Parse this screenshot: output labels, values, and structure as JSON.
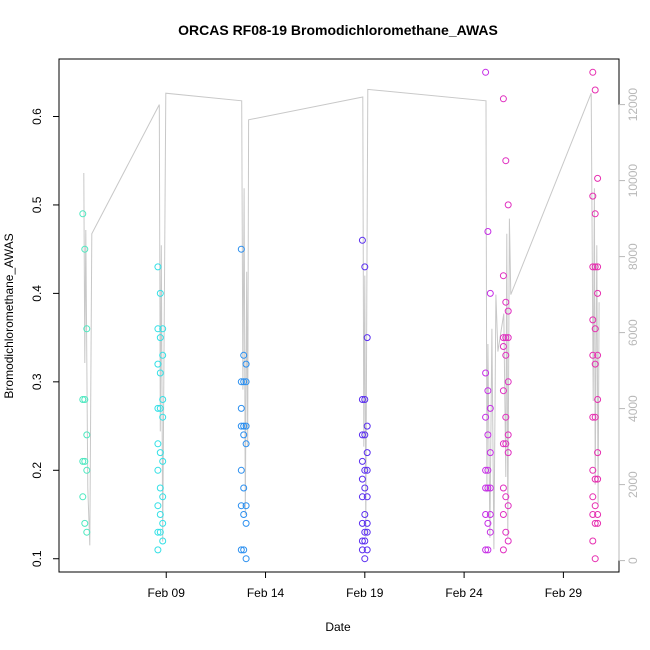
{
  "chart_data": {
    "type": "scatter",
    "title": "ORCAS RF08-19 Bromodichloromethane_AWAS",
    "xlabel": "Date",
    "ylabel": "Bromodichloromethane_AWAS",
    "x_ticks": [
      "Feb 09",
      "Feb 14",
      "Feb 19",
      "Feb 24",
      "Feb 29"
    ],
    "x_tick_days": [
      9,
      14,
      19,
      24,
      29
    ],
    "xlim": [
      3.6,
      31.8
    ],
    "ylim": [
      0.085,
      0.665
    ],
    "y_ticks": [
      0.1,
      0.2,
      0.3,
      0.4,
      0.5,
      0.6
    ],
    "y_right_ticks": [
      0,
      2000,
      4000,
      6000,
      8000,
      10000,
      12000
    ],
    "y_right_lim": [
      -300,
      13200
    ],
    "right_axis_color": "#b8b8b8",
    "line_color": "#c8c8c8",
    "grid": false,
    "series": [
      {
        "day": 4.9,
        "color": "#4de8c0",
        "jitter": 0.1,
        "values": [
          0.49,
          0.45,
          0.36,
          0.28,
          0.28,
          0.24,
          0.21,
          0.21,
          0.2,
          0.17,
          0.14,
          0.13
        ]
      },
      {
        "day": 8.7,
        "color": "#33e0e6",
        "jitter": 0.12,
        "values": [
          0.43,
          0.4,
          0.36,
          0.36,
          0.35,
          0.33,
          0.32,
          0.31,
          0.28,
          0.27,
          0.27,
          0.26,
          0.23,
          0.22,
          0.21,
          0.2,
          0.18,
          0.17,
          0.16,
          0.15,
          0.14,
          0.13,
          0.13,
          0.12,
          0.11
        ]
      },
      {
        "day": 12.9,
        "color": "#2a8ff0",
        "jitter": 0.12,
        "values": [
          0.45,
          0.33,
          0.32,
          0.3,
          0.3,
          0.3,
          0.27,
          0.25,
          0.25,
          0.25,
          0.24,
          0.23,
          0.2,
          0.18,
          0.16,
          0.16,
          0.15,
          0.14,
          0.11,
          0.11,
          0.1
        ]
      },
      {
        "day": 19.0,
        "color": "#5a2ef0",
        "jitter": 0.12,
        "values": [
          0.46,
          0.43,
          0.35,
          0.28,
          0.28,
          0.25,
          0.24,
          0.24,
          0.22,
          0.21,
          0.2,
          0.2,
          0.19,
          0.18,
          0.17,
          0.17,
          0.15,
          0.14,
          0.14,
          0.13,
          0.13,
          0.12,
          0.12,
          0.11,
          0.11,
          0.1
        ]
      },
      {
        "day": 25.2,
        "color": "#c62ee6",
        "jitter": 0.12,
        "values": [
          0.65,
          0.47,
          0.4,
          0.31,
          0.29,
          0.27,
          0.26,
          0.24,
          0.22,
          0.2,
          0.2,
          0.18,
          0.18,
          0.18,
          0.15,
          0.15,
          0.14,
          0.13,
          0.11,
          0.11
        ]
      },
      {
        "day": 26.1,
        "color": "#e02ec0",
        "jitter": 0.12,
        "values": [
          0.62,
          0.55,
          0.5,
          0.42,
          0.39,
          0.38,
          0.35,
          0.35,
          0.35,
          0.34,
          0.33,
          0.3,
          0.29,
          0.26,
          0.24,
          0.23,
          0.23,
          0.22,
          0.18,
          0.17,
          0.16,
          0.15,
          0.13,
          0.12,
          0.11
        ]
      },
      {
        "day": 30.6,
        "color": "#e62eb0",
        "jitter": 0.12,
        "values": [
          0.65,
          0.63,
          0.53,
          0.51,
          0.49,
          0.43,
          0.43,
          0.43,
          0.4,
          0.37,
          0.36,
          0.33,
          0.33,
          0.32,
          0.28,
          0.26,
          0.26,
          0.22,
          0.2,
          0.19,
          0.19,
          0.17,
          0.16,
          0.15,
          0.15,
          0.14,
          0.14,
          0.12,
          0.1
        ]
      }
    ],
    "secondary_line": {
      "name": "",
      "points": [
        [
          4.85,
          10200
        ],
        [
          4.9,
          5200
        ],
        [
          4.95,
          8700
        ],
        [
          5.05,
          1900
        ],
        [
          5.15,
          400
        ],
        [
          5.25,
          8600
        ],
        [
          8.65,
          12000
        ],
        [
          8.7,
          3400
        ],
        [
          8.75,
          8300
        ],
        [
          8.82,
          500
        ],
        [
          8.9,
          6200
        ],
        [
          8.98,
          12300
        ],
        [
          12.8,
          12100
        ],
        [
          12.86,
          4500
        ],
        [
          12.92,
          9800
        ],
        [
          12.98,
          1200
        ],
        [
          13.05,
          7600
        ],
        [
          13.1,
          3000
        ],
        [
          13.15,
          11600
        ],
        [
          18.9,
          12200
        ],
        [
          18.95,
          3000
        ],
        [
          19.0,
          7500
        ],
        [
          19.05,
          600
        ],
        [
          19.1,
          6900
        ],
        [
          19.15,
          12400
        ],
        [
          25.1,
          12100
        ],
        [
          25.15,
          1800
        ],
        [
          25.2,
          5700
        ],
        [
          25.3,
          600
        ],
        [
          25.4,
          6100
        ],
        [
          25.5,
          300
        ],
        [
          25.6,
          7000
        ],
        [
          25.7,
          5500
        ],
        [
          26.0,
          6500
        ],
        [
          26.1,
          2200
        ],
        [
          26.15,
          8600
        ],
        [
          26.2,
          600
        ],
        [
          26.28,
          9000
        ],
        [
          26.35,
          7000
        ],
        [
          30.4,
          12300
        ],
        [
          30.5,
          4200
        ],
        [
          30.56,
          9800
        ],
        [
          30.6,
          2000
        ],
        [
          30.68,
          8300
        ],
        [
          30.75,
          1500
        ],
        [
          30.8,
          6800
        ]
      ]
    }
  }
}
